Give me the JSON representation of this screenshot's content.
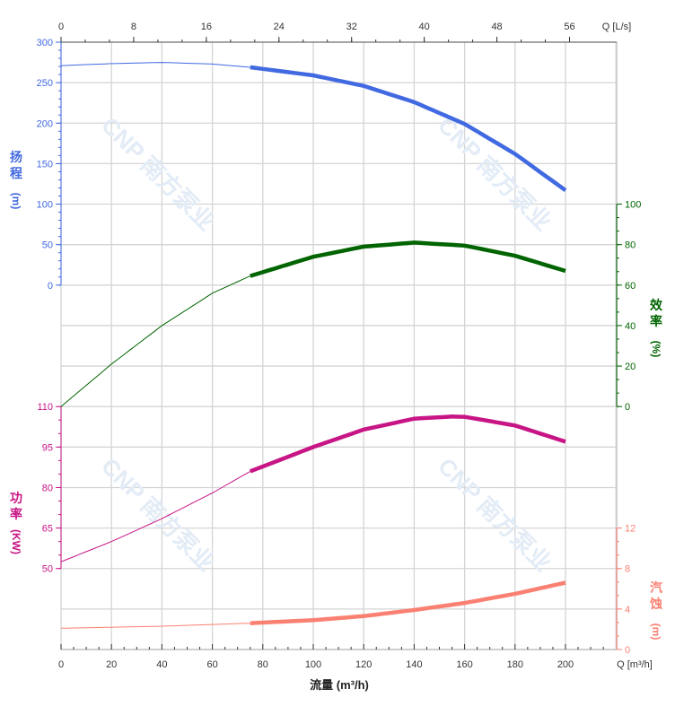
{
  "chart_data": {
    "type": "line",
    "xlabel": "流量 (m³/h)",
    "x_unit_label": "Q [m³/h]",
    "x_top_unit_label": "Q [L/s]",
    "xlim": [
      0,
      220
    ],
    "x_ticks": [
      0,
      20,
      40,
      60,
      80,
      100,
      120,
      140,
      160,
      180,
      200
    ],
    "x_top_ticks": [
      0,
      8,
      16,
      24,
      32,
      40,
      48,
      56
    ],
    "grid": true,
    "watermark": "CNP 南方泵业",
    "axes": {
      "head": {
        "label": [
          "扬",
          "程",
          "(m)"
        ],
        "ticks": [
          0,
          50,
          100,
          150,
          200,
          250,
          300
        ],
        "range": [
          0,
          300
        ],
        "color": "#4169E1",
        "side": "left"
      },
      "efficiency": {
        "label": [
          "效",
          "率",
          "(%)"
        ],
        "ticks": [
          0,
          20,
          40,
          60,
          80,
          100
        ],
        "range": [
          0,
          100
        ],
        "color": "#006400",
        "side": "right"
      },
      "power": {
        "label": [
          "功",
          "率",
          "(KW)"
        ],
        "ticks": [
          50,
          65,
          80,
          95,
          110
        ],
        "range": [
          50,
          110
        ],
        "color": "#C71585",
        "side": "left"
      },
      "npsh": {
        "label": [
          "汽",
          "蚀",
          "(m)"
        ],
        "ticks": [
          0,
          4,
          8,
          12
        ],
        "range": [
          0,
          12
        ],
        "color": "#FA8072",
        "side": "right"
      }
    },
    "operating_range": [
      75,
      200
    ],
    "series": [
      {
        "axis": "head",
        "color": "#4169E1",
        "x": [
          0,
          20,
          40,
          60,
          75,
          100,
          120,
          140,
          160,
          180,
          200
        ],
        "y": [
          271,
          273.5,
          275,
          273,
          269,
          259,
          246,
          226,
          199,
          162,
          117
        ]
      },
      {
        "axis": "efficiency",
        "color": "#006400",
        "x": [
          0,
          20,
          40,
          60,
          75,
          100,
          120,
          140,
          160,
          180,
          200
        ],
        "y": [
          0,
          21,
          40,
          56,
          64.5,
          74,
          79,
          81,
          79.5,
          74.5,
          67
        ]
      },
      {
        "axis": "power",
        "color": "#C71585",
        "x": [
          0,
          20,
          40,
          60,
          75,
          100,
          120,
          140,
          155,
          160,
          180,
          200
        ],
        "y": [
          52.5,
          60,
          68.5,
          78,
          86,
          95,
          101.5,
          105.5,
          106.3,
          106.2,
          103,
          97
        ]
      },
      {
        "axis": "npsh",
        "color": "#FA8072",
        "x": [
          0,
          40,
          75,
          100,
          120,
          140,
          160,
          180,
          200
        ],
        "y": [
          2.1,
          2.3,
          2.6,
          2.9,
          3.3,
          3.9,
          4.6,
          5.5,
          6.6
        ]
      }
    ]
  }
}
